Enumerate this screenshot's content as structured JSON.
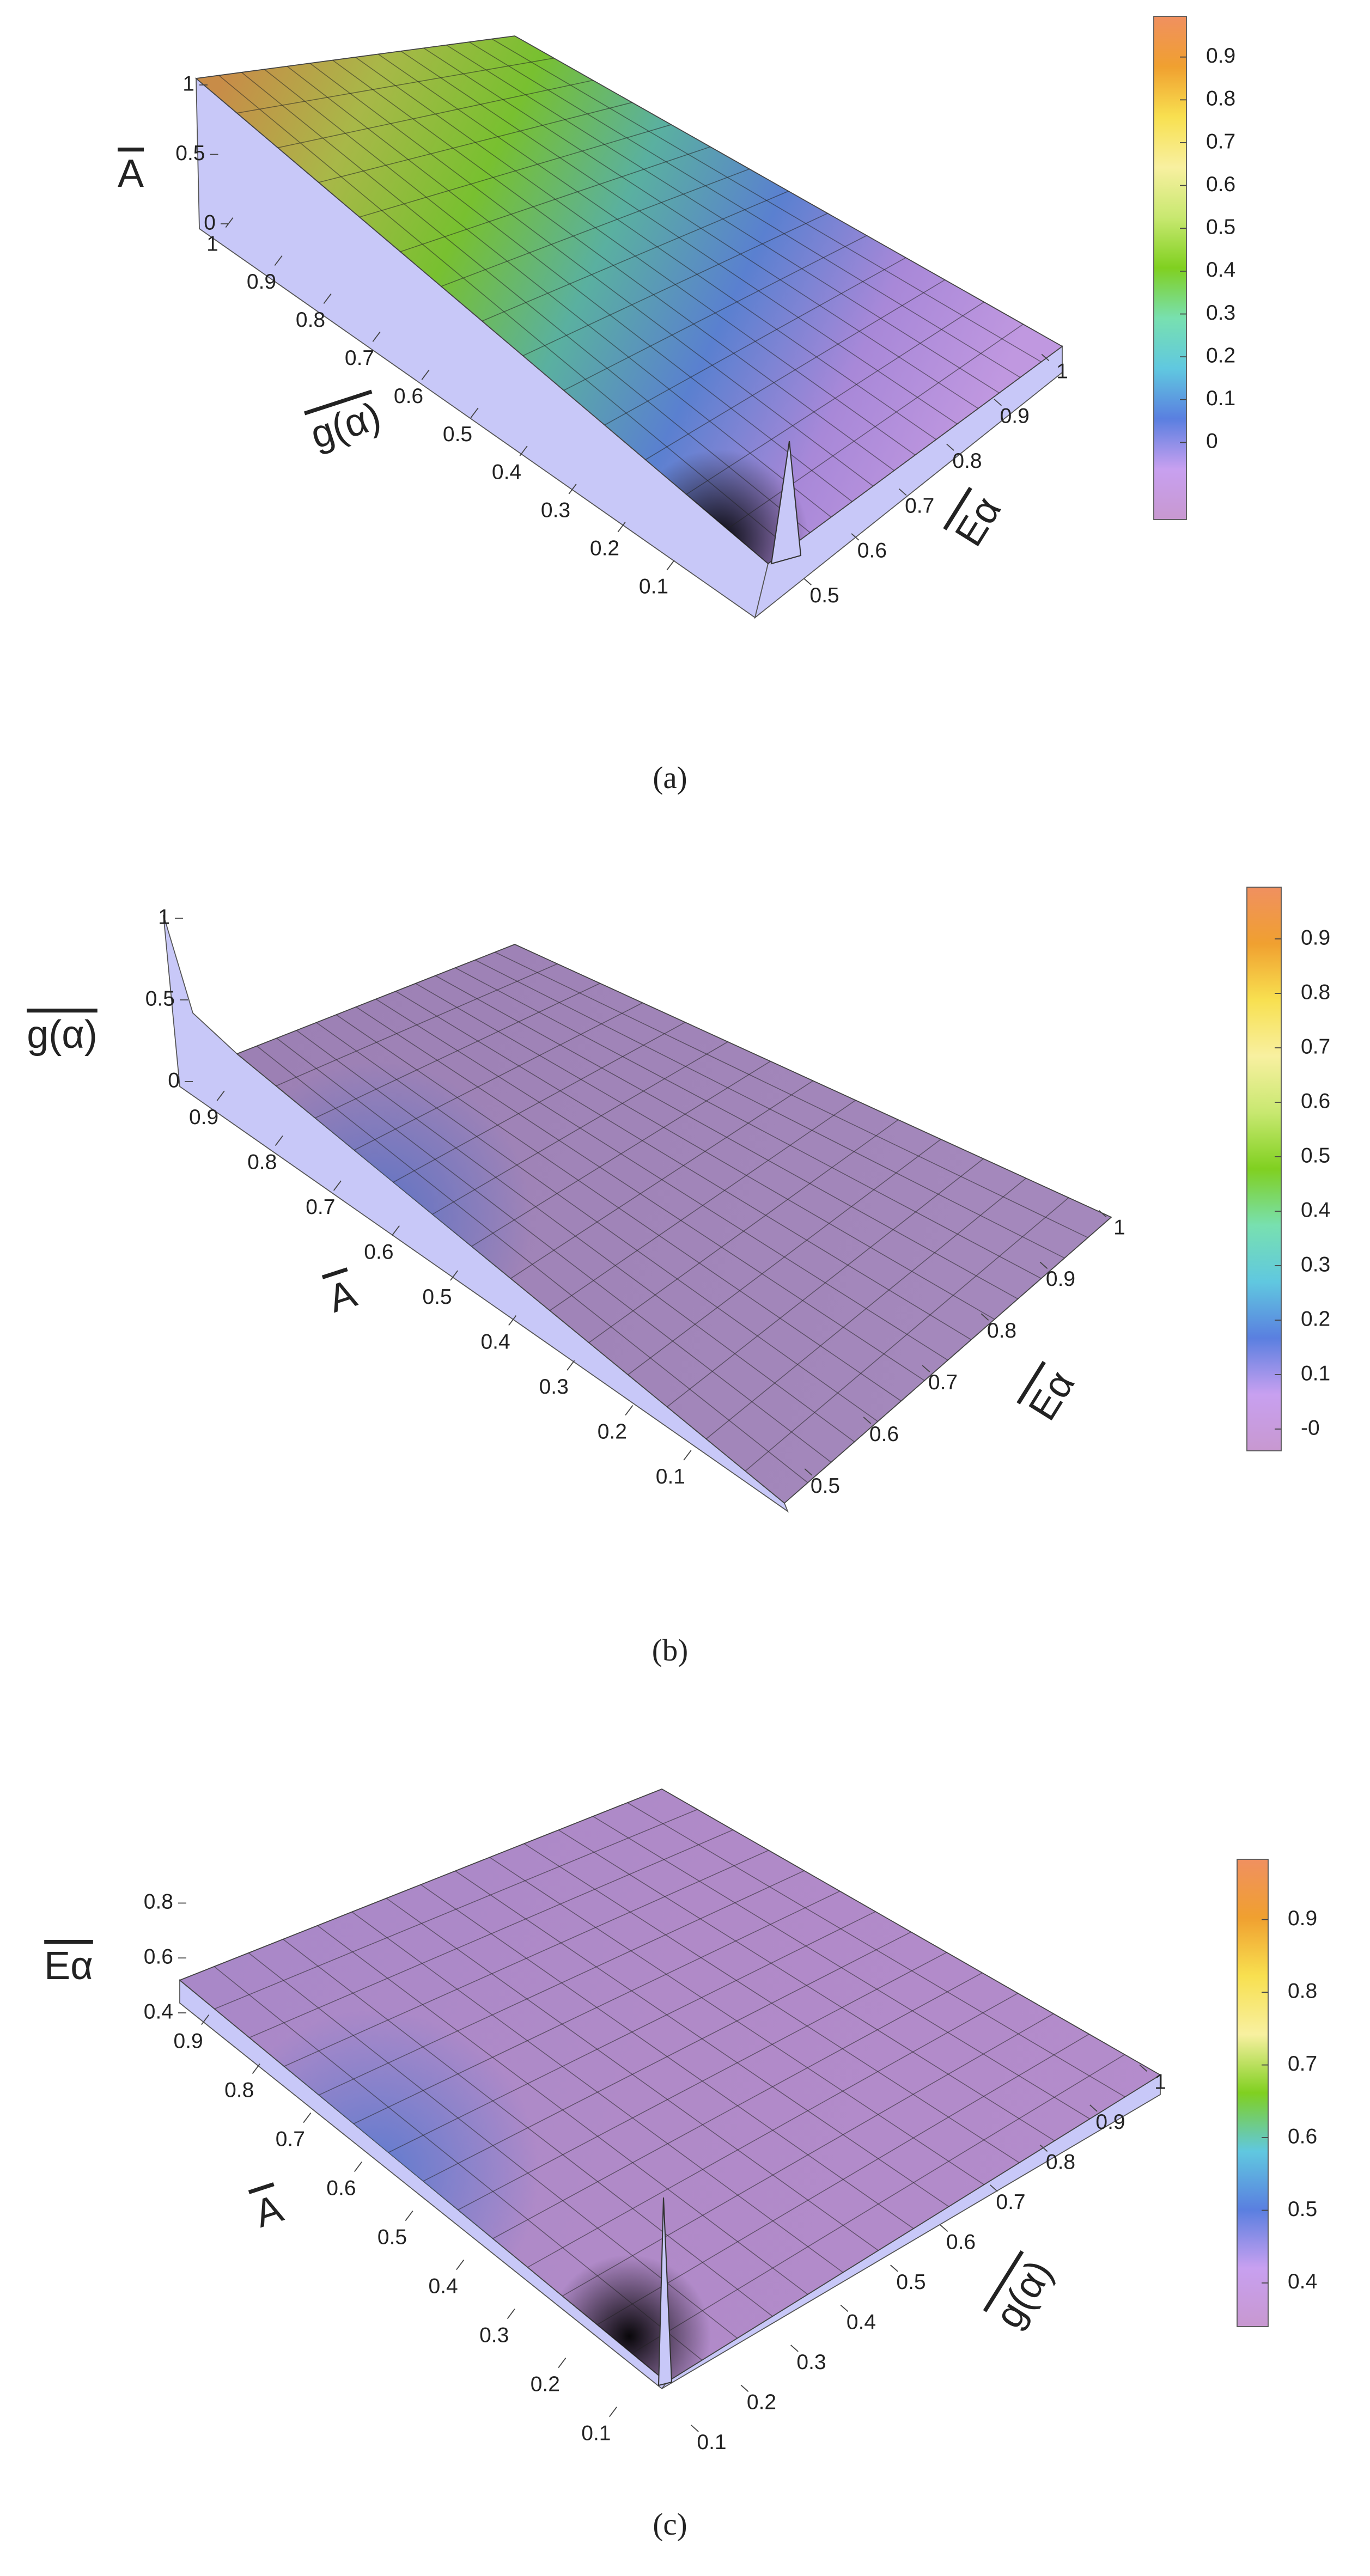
{
  "chart_data": [
    {
      "type": "surface",
      "caption": "(a)",
      "xlabel": "Eα",
      "xlim": [
        0.45,
        1
      ],
      "xticks": [
        0.5,
        0.6,
        0.7,
        0.8,
        0.9,
        1
      ],
      "ylabel": "g(α)",
      "ylim": [
        0,
        1
      ],
      "yticks": [
        0.1,
        0.2,
        0.3,
        0.4,
        0.5,
        0.6,
        0.7,
        0.8,
        0.9,
        1
      ],
      "zlabel": "A",
      "zlim": [
        0,
        1
      ],
      "zticks": [
        0,
        0.5,
        1
      ],
      "colorbar": {
        "lim": [
          -0.18,
          0.995
        ],
        "ticks": [
          0,
          0.1,
          0.2,
          0.3,
          0.4,
          0.5,
          0.6,
          0.7,
          0.8,
          0.9
        ],
        "colors": [
          "#c898d0",
          "#c8a0f0",
          "#5a7fe0",
          "#60c8e0",
          "#78e0b0",
          "#80d020",
          "#c8e870",
          "#f8f0a0",
          "#f8e050",
          "#f0a030",
          "#f09060"
        ]
      }
    },
    {
      "type": "surface",
      "caption": "(b)",
      "xlabel": "Eα",
      "xlim": [
        0.45,
        1
      ],
      "xticks": [
        0.5,
        0.6,
        0.7,
        0.8,
        0.9,
        1
      ],
      "ylabel": "A",
      "ylim": [
        0,
        1
      ],
      "yticks": [
        0.1,
        0.2,
        0.3,
        0.4,
        0.5,
        0.6,
        0.7,
        0.8,
        0.9
      ],
      "zlabel": "g(α)",
      "zlim": [
        0,
        1
      ],
      "zticks": [
        0,
        0.5,
        1
      ],
      "colorbar": {
        "lim": [
          -0.04,
          0.995
        ],
        "ticks": [
          {
            "value": 0,
            "label": "-0"
          },
          0.1,
          0.2,
          0.3,
          0.4,
          0.5,
          0.6,
          0.7,
          0.8,
          0.9
        ],
        "colors": [
          "#c898d0",
          "#c8a0f0",
          "#5a7fe0",
          "#60c8e0",
          "#78e0b0",
          "#80d020",
          "#c8e870",
          "#f8f0a0",
          "#f8e050",
          "#f0a030",
          "#f09060"
        ]
      }
    },
    {
      "type": "surface",
      "caption": "(c)",
      "xlabel": "g(α)",
      "xlim": [
        0,
        1
      ],
      "xticks": [
        0.1,
        0.2,
        0.3,
        0.4,
        0.5,
        0.6,
        0.7,
        0.8,
        0.9,
        1
      ],
      "ylabel": "A",
      "ylim": [
        0,
        1
      ],
      "yticks": [
        0.1,
        0.2,
        0.3,
        0.4,
        0.5,
        0.6,
        0.7,
        0.8,
        0.9
      ],
      "zlabel": "Eα",
      "zlim": [
        0.4,
        0.9
      ],
      "zticks": [
        0.4,
        0.6,
        0.8
      ],
      "colorbar": {
        "lim": [
          0.34,
          0.983
        ],
        "ticks": [
          0.4,
          0.5,
          0.6,
          0.7,
          0.8,
          0.9
        ],
        "colors": [
          "#c898d0",
          "#c8a0f0",
          "#5a7fe0",
          "#60c8e0",
          "#80d020",
          "#f8f0a0",
          "#f8e050",
          "#f0a030",
          "#f09060"
        ]
      }
    }
  ]
}
